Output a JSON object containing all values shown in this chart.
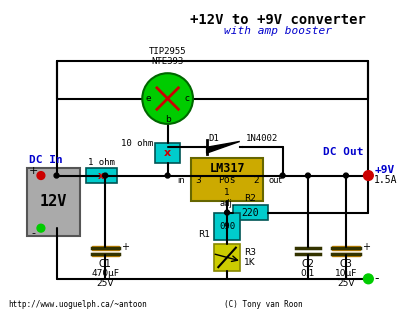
{
  "title": "+12V to +9V converter",
  "subtitle": "with amp booster",
  "bg_color": "#ffffff",
  "title_color": "#000000",
  "subtitle_color": "#0000cc",
  "footer_left": "http://www.uoguelph.ca/~antoon",
  "footer_right": "(C) Tony van Roon",
  "wire_color_main": "#000000",
  "transistor_circle_color": "#00cc00",
  "resistor_cyan_color": "#00cccc",
  "lm317_color": "#ccaa00",
  "r3_color": "#cccc00",
  "battery_color": "#aaaaaa",
  "cap_color": "#cc8800",
  "dc_in_color": "#0000cc",
  "dc_out_color": "#0000cc",
  "dot_color": "#000000",
  "red_dot": "#cc0000",
  "green_dot": "#00cc00"
}
